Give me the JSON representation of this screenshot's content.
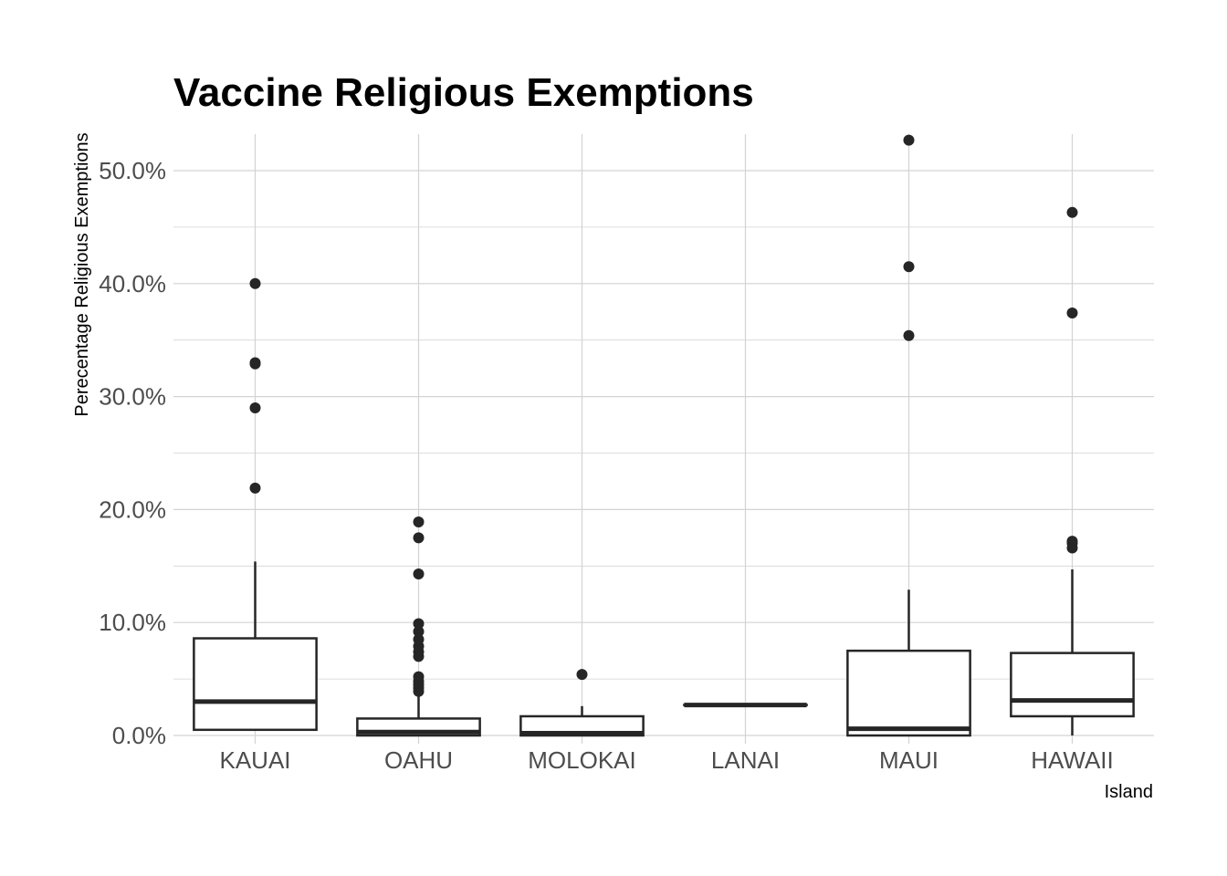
{
  "chart_data": {
    "type": "boxplot",
    "title": "Vaccine Religious Exemptions",
    "xlabel": "Island",
    "ylabel": "Perecentage Religious Exemptions",
    "categories": [
      "KAUAI",
      "OAHU",
      "MOLOKAI",
      "LANAI",
      "MAUI",
      "HAWAII"
    ],
    "ylim": [
      -0.8,
      53.2
    ],
    "yticks": [
      0,
      10,
      20,
      30,
      40,
      50
    ],
    "ytick_labels": [
      "0.0%",
      "10.0%",
      "20.0%",
      "30.0%",
      "40.0%",
      "50.0%"
    ],
    "grid": true,
    "boxes": [
      {
        "category": "KAUAI",
        "min": 0.5,
        "q1": 0.5,
        "median": 3.0,
        "q3": 8.6,
        "max": 15.4,
        "outliers": [
          21.9,
          29.0,
          32.9,
          33.0,
          40.0
        ]
      },
      {
        "category": "OAHU",
        "min": 0.0,
        "q1": 0.0,
        "median": 0.3,
        "q3": 1.5,
        "max": 3.7,
        "outliers": [
          3.9,
          4.2,
          4.5,
          4.8,
          5.2,
          7.0,
          7.4,
          7.9,
          8.5,
          9.2,
          9.9,
          14.3,
          17.5,
          18.9
        ]
      },
      {
        "category": "MOLOKAI",
        "min": 0.0,
        "q1": 0.0,
        "median": 0.2,
        "q3": 1.7,
        "max": 2.6,
        "outliers": [
          5.4
        ]
      },
      {
        "category": "LANAI",
        "min": 2.7,
        "q1": 2.7,
        "median": 2.7,
        "q3": 2.7,
        "max": 2.7,
        "outliers": []
      },
      {
        "category": "MAUI",
        "min": 0.0,
        "q1": 0.0,
        "median": 0.6,
        "q3": 7.5,
        "max": 12.9,
        "outliers": [
          35.4,
          41.5,
          52.7
        ]
      },
      {
        "category": "HAWAII",
        "min": 0.0,
        "q1": 1.7,
        "median": 3.1,
        "q3": 7.3,
        "max": 14.7,
        "outliers": [
          16.6,
          17.0,
          17.2,
          37.4,
          46.3
        ]
      }
    ],
    "colors": {
      "box_stroke": "#262626",
      "point": "#262626",
      "grid": "#d3d3d3",
      "tick_label": "#4d4d4d"
    }
  }
}
